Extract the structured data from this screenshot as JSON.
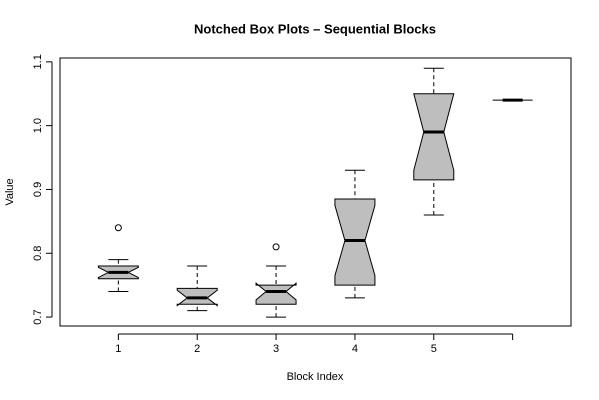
{
  "chart_data": {
    "type": "boxplot",
    "title": "Notched Box Plots – Sequential Blocks",
    "xlabel": "Block Index",
    "ylabel": "Value",
    "categories": [
      "1",
      "2",
      "3",
      "4",
      "5",
      null
    ],
    "color": "#bebebe",
    "boxes": [
      {
        "whisker_low": 0.74,
        "q1": 0.76,
        "median": 0.77,
        "q3": 0.78,
        "whisker_high": 0.79,
        "notch_low": 0.762,
        "notch_high": 0.778,
        "outliers": [
          0.84
        ]
      },
      {
        "whisker_low": 0.71,
        "q1": 0.72,
        "median": 0.73,
        "q3": 0.745,
        "whisker_high": 0.78,
        "notch_low": 0.718,
        "notch_high": 0.742,
        "outliers": []
      },
      {
        "whisker_low": 0.7,
        "q1": 0.72,
        "median": 0.74,
        "q3": 0.75,
        "whisker_high": 0.78,
        "notch_low": 0.727,
        "notch_high": 0.753,
        "outliers": [
          0.81
        ]
      },
      {
        "whisker_low": 0.73,
        "q1": 0.75,
        "median": 0.82,
        "q3": 0.885,
        "whisker_high": 0.93,
        "notch_low": 0.765,
        "notch_high": 0.875,
        "outliers": []
      },
      {
        "whisker_low": 0.86,
        "q1": 0.915,
        "median": 0.99,
        "q3": 1.05,
        "whisker_high": 1.09,
        "notch_low": 0.93,
        "notch_high": 1.05,
        "outliers": []
      },
      {
        "whisker_low": 1.04,
        "q1": 1.04,
        "median": 1.04,
        "q3": 1.04,
        "whisker_high": 1.04,
        "notch_low": 1.04,
        "notch_high": 1.04,
        "outliers": []
      }
    ],
    "ylim": [
      0.686,
      1.106
    ],
    "yticks": [
      0.7,
      0.8,
      0.9,
      {
        "value": 1,
        "label": "1.0"
      },
      1.1
    ]
  }
}
